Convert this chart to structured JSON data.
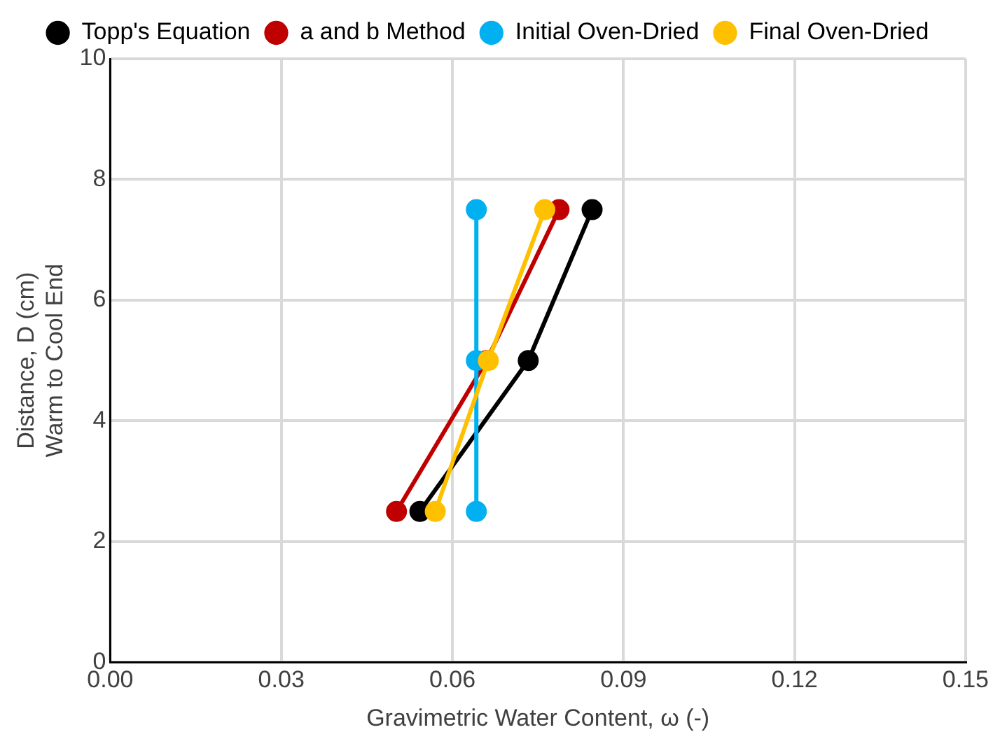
{
  "chart_data": {
    "type": "line",
    "xlabel": "Gravimetric Water Content, ω (-)",
    "ylabel": "Distance, D (cm)\nWarm to Cool End",
    "xlim": [
      0,
      0.15
    ],
    "xticks": [
      {
        "value": 0,
        "label": "0.00"
      },
      {
        "value": 0.03,
        "label": "0.03"
      },
      {
        "value": 0.06,
        "label": "0.06"
      },
      {
        "value": 0.09,
        "label": "0.09"
      },
      {
        "value": 0.12,
        "label": "0.12"
      },
      {
        "value": 0.15,
        "label": "0.15"
      }
    ],
    "ylim": [
      0,
      10
    ],
    "yticks": [
      0,
      2,
      4,
      6,
      8,
      10
    ],
    "grid": true,
    "legend": "top",
    "marker": "circle",
    "line_style": "solid",
    "series": [
      {
        "name": "Topp's Equation",
        "color": "#000000",
        "x": [
          0.0543,
          0.0733,
          0.0845
        ],
        "values": [
          2.5,
          5,
          7.5
        ]
      },
      {
        "name": "a and b Method",
        "color": "#c00000",
        "x": [
          0.0502,
          0.066,
          0.0787
        ],
        "values": [
          2.5,
          5,
          7.5
        ]
      },
      {
        "name": "Initial Oven-Dried",
        "color": "#00b0f0",
        "x": [
          0.0642,
          0.0642,
          0.0642
        ],
        "values": [
          2.5,
          5,
          7.5
        ]
      },
      {
        "name": "Final Oven-Dried",
        "color": "#ffc000",
        "x": [
          0.057,
          0.0663,
          0.0762
        ],
        "values": [
          2.5,
          5,
          7.5
        ]
      }
    ]
  }
}
